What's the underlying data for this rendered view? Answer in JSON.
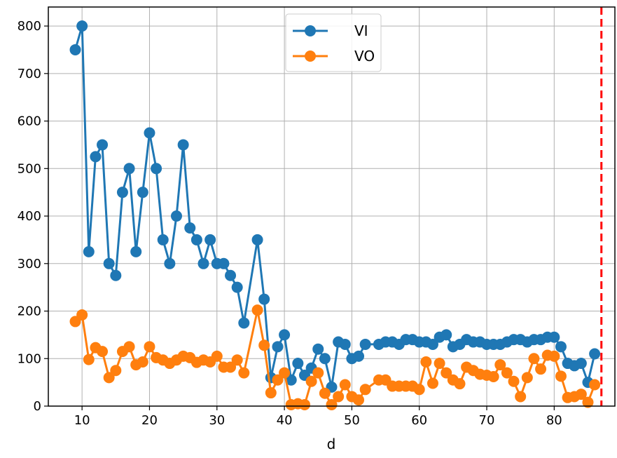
{
  "chart_data": {
    "type": "line",
    "xlabel": "d",
    "ylabel": "",
    "xlim": [
      5,
      89
    ],
    "ylim": [
      0,
      840
    ],
    "xticks": [
      10,
      20,
      30,
      40,
      50,
      60,
      70,
      80
    ],
    "yticks": [
      0,
      100,
      200,
      300,
      400,
      500,
      600,
      700,
      800
    ],
    "grid": true,
    "legend_position": "top-center",
    "vline": {
      "x": 87,
      "color": "#ff0000",
      "style": "dashed"
    },
    "series": [
      {
        "name": "VI",
        "color": "#1f77b4",
        "x": [
          9,
          10,
          11,
          12,
          13,
          14,
          15,
          16,
          17,
          18,
          19,
          20,
          21,
          22,
          23,
          24,
          25,
          26,
          27,
          28,
          29,
          30,
          31,
          32,
          33,
          34,
          36,
          37,
          38,
          39,
          40,
          41,
          42,
          43,
          44,
          45,
          46,
          47,
          48,
          49,
          50,
          51,
          52,
          54,
          55,
          56,
          57,
          58,
          59,
          60,
          61,
          62,
          63,
          64,
          65,
          66,
          67,
          68,
          69,
          70,
          71,
          72,
          73,
          74,
          75,
          76,
          77,
          78,
          79,
          80,
          81,
          82,
          83,
          84,
          85,
          86
        ],
        "y": [
          750,
          800,
          325,
          525,
          550,
          300,
          275,
          450,
          500,
          325,
          450,
          575,
          500,
          350,
          300,
          400,
          550,
          375,
          350,
          300,
          350,
          300,
          300,
          275,
          250,
          175,
          350,
          225,
          60,
          125,
          150,
          55,
          90,
          65,
          80,
          120,
          100,
          40,
          135,
          130,
          100,
          105,
          130,
          130,
          135,
          135,
          130,
          140,
          140,
          135,
          135,
          130,
          145,
          150,
          125,
          130,
          140,
          135,
          135,
          130,
          130,
          130,
          135,
          140,
          140,
          135,
          140,
          140,
          145,
          145,
          125,
          90,
          85,
          90,
          50,
          110
        ]
      },
      {
        "name": "VO",
        "color": "#ff7f0e",
        "x": [
          9,
          10,
          11,
          12,
          13,
          14,
          15,
          16,
          17,
          18,
          19,
          20,
          21,
          22,
          23,
          24,
          25,
          26,
          27,
          28,
          29,
          30,
          31,
          32,
          33,
          34,
          36,
          37,
          38,
          39,
          40,
          41,
          42,
          43,
          44,
          45,
          46,
          47,
          48,
          49,
          50,
          51,
          52,
          54,
          55,
          56,
          57,
          58,
          59,
          60,
          61,
          62,
          63,
          64,
          65,
          66,
          67,
          68,
          69,
          70,
          71,
          72,
          73,
          74,
          75,
          76,
          77,
          78,
          79,
          80,
          81,
          82,
          83,
          84,
          85,
          86
        ],
        "y": [
          178,
          192,
          98,
          123,
          115,
          60,
          75,
          115,
          125,
          87,
          93,
          125,
          102,
          97,
          90,
          97,
          105,
          102,
          92,
          97,
          93,
          105,
          82,
          82,
          97,
          70,
          202,
          128,
          28,
          55,
          70,
          3,
          5,
          3,
          52,
          70,
          27,
          3,
          20,
          45,
          20,
          13,
          35,
          55,
          55,
          42,
          42,
          42,
          42,
          35,
          93,
          48,
          90,
          70,
          55,
          47,
          82,
          75,
          67,
          65,
          62,
          87,
          70,
          52,
          20,
          60,
          100,
          78,
          107,
          105,
          63,
          18,
          20,
          25,
          8,
          45
        ]
      }
    ]
  }
}
